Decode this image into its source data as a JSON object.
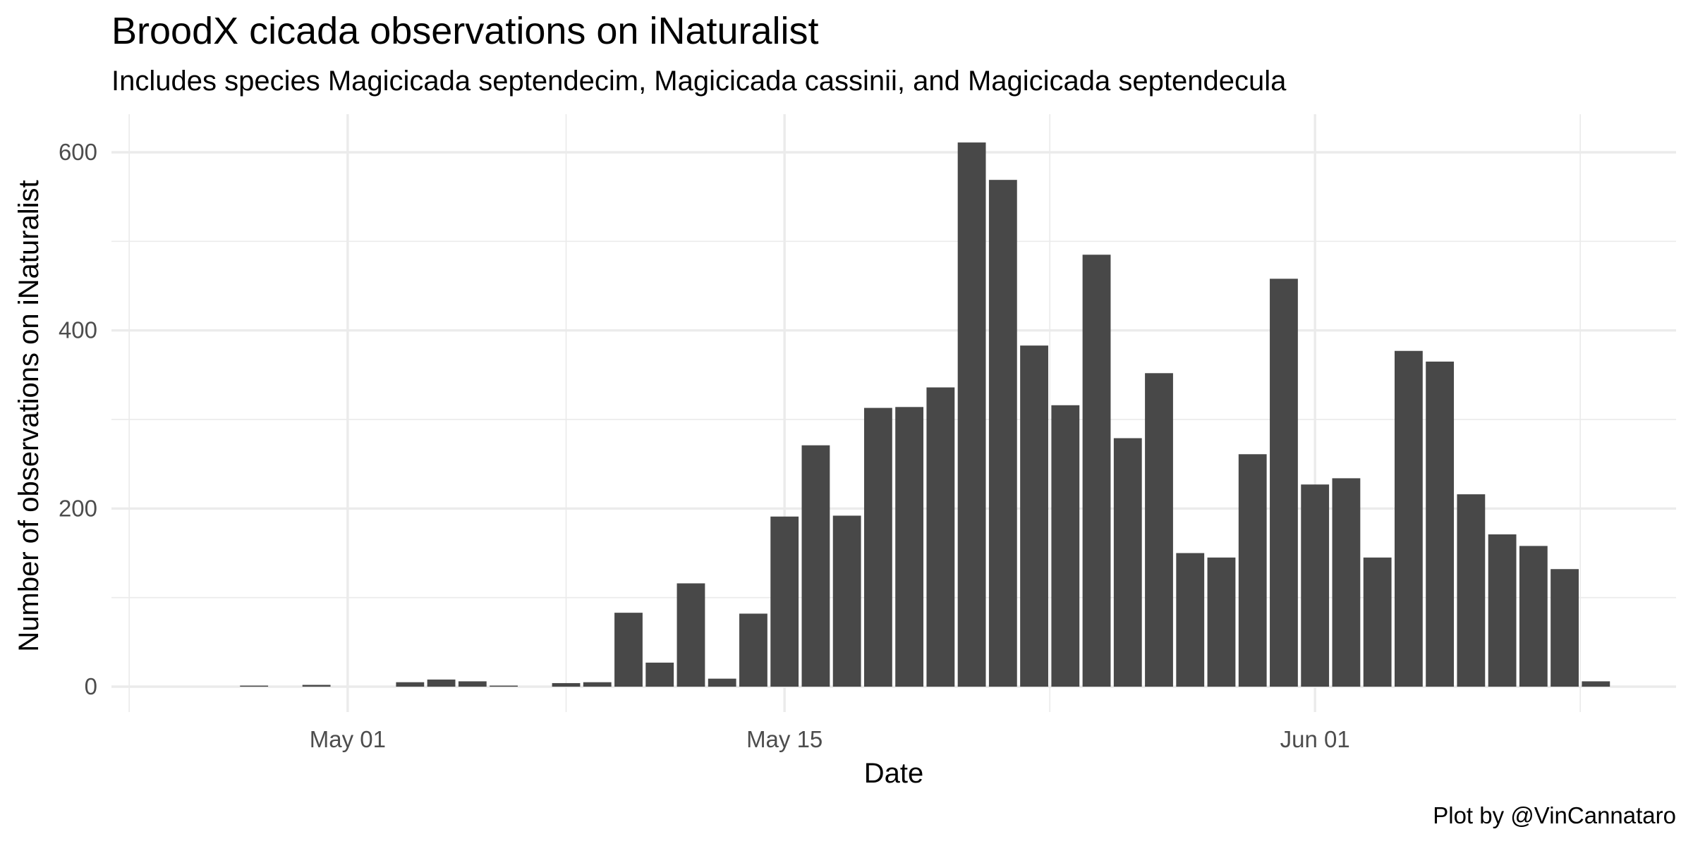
{
  "chart_data": {
    "type": "bar",
    "title": "BroodX cicada observations on iNaturalist",
    "subtitle": "Includes species Magicicada septendecim, Magicicada cassinii, and Magicicada septendecula",
    "xlabel": "Date",
    "ylabel": "Number of observations on iNaturalist",
    "caption": "Plot by @VinCannataro",
    "x_ticks": [
      "May 01",
      "May 15",
      "Jun 01"
    ],
    "y_ticks": [
      0,
      200,
      400,
      600
    ],
    "ylim": [
      0,
      645
    ],
    "grid": true,
    "categories": [
      "2021-04-26",
      "2021-04-27",
      "2021-04-28",
      "2021-04-29",
      "2021-04-30",
      "2021-05-01",
      "2021-05-02",
      "2021-05-03",
      "2021-05-04",
      "2021-05-05",
      "2021-05-06",
      "2021-05-07",
      "2021-05-08",
      "2021-05-09",
      "2021-05-10",
      "2021-05-11",
      "2021-05-12",
      "2021-05-13",
      "2021-05-14",
      "2021-05-15",
      "2021-05-16",
      "2021-05-17",
      "2021-05-18",
      "2021-05-19",
      "2021-05-20",
      "2021-05-21",
      "2021-05-22",
      "2021-05-23",
      "2021-05-24",
      "2021-05-25",
      "2021-05-26",
      "2021-05-27",
      "2021-05-28",
      "2021-05-29",
      "2021-05-30",
      "2021-05-31",
      "2021-06-01",
      "2021-06-02",
      "2021-06-03",
      "2021-06-04",
      "2021-06-05",
      "2021-06-06",
      "2021-06-07",
      "2021-06-08",
      "2021-06-09",
      "2021-06-10"
    ],
    "values": [
      0,
      0,
      1,
      0,
      2,
      0,
      0,
      5,
      8,
      6,
      1,
      0,
      4,
      5,
      83,
      27,
      116,
      9,
      82,
      191,
      271,
      192,
      313,
      314,
      336,
      611,
      569,
      383,
      316,
      485,
      279,
      352,
      150,
      145,
      261,
      458,
      227,
      234,
      145,
      377,
      365,
      216,
      171,
      158,
      132,
      6
    ]
  }
}
